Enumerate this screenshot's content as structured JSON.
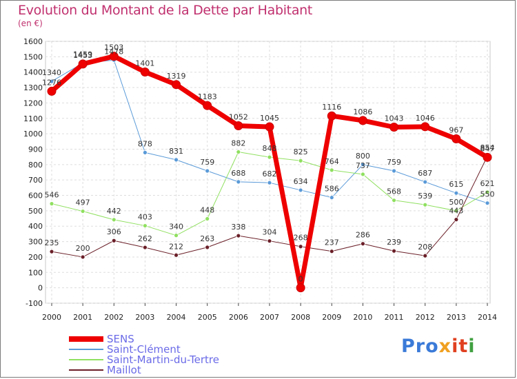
{
  "title": "Evolution du Montant de la Dette par Habitant",
  "subtitle": "(en €)",
  "logo": {
    "text": "Proxiti",
    "parts": [
      "Pro",
      "x",
      "it",
      "i"
    ]
  },
  "chart_data": {
    "type": "line",
    "title": "Evolution du Montant de la Dette par Habitant",
    "ylabel": "(en €)",
    "xlabel": "",
    "ylim": [
      -100,
      1600
    ],
    "yticks": [
      -100,
      0,
      100,
      200,
      300,
      400,
      500,
      600,
      700,
      800,
      900,
      1000,
      1100,
      1200,
      1300,
      1400,
      1500,
      1600
    ],
    "x": [
      "2000",
      "2001",
      "2002",
      "2003",
      "2004",
      "2005",
      "2006",
      "2007",
      "2008",
      "2009",
      "2010",
      "2011",
      "2012",
      "2013",
      "2014"
    ],
    "grid": true,
    "legend_position": "bottom-left",
    "series": [
      {
        "name": "SENS",
        "color": "#ee0000",
        "width": 7,
        "values": [
          1276,
          1453,
          1503,
          1401,
          1319,
          1183,
          1052,
          1045,
          0,
          1116,
          1086,
          1043,
          1046,
          967,
          847
        ]
      },
      {
        "name": "Saint-Clément",
        "color": "#5a9ad8",
        "width": 1,
        "values": [
          1340,
          1459,
          1478,
          878,
          831,
          759,
          688,
          682,
          634,
          586,
          800,
          759,
          687,
          615,
          550
        ]
      },
      {
        "name": "Saint-Martin-du-Tertre",
        "color": "#90e060",
        "width": 1,
        "values": [
          546,
          497,
          442,
          403,
          340,
          448,
          882,
          848,
          825,
          764,
          737,
          568,
          539,
          500,
          621
        ]
      },
      {
        "name": "Maillot",
        "color": "#6a1f28",
        "width": 1,
        "values": [
          235,
          200,
          306,
          262,
          212,
          263,
          338,
          304,
          268,
          237,
          286,
          239,
          208,
          443,
          854
        ]
      }
    ]
  }
}
